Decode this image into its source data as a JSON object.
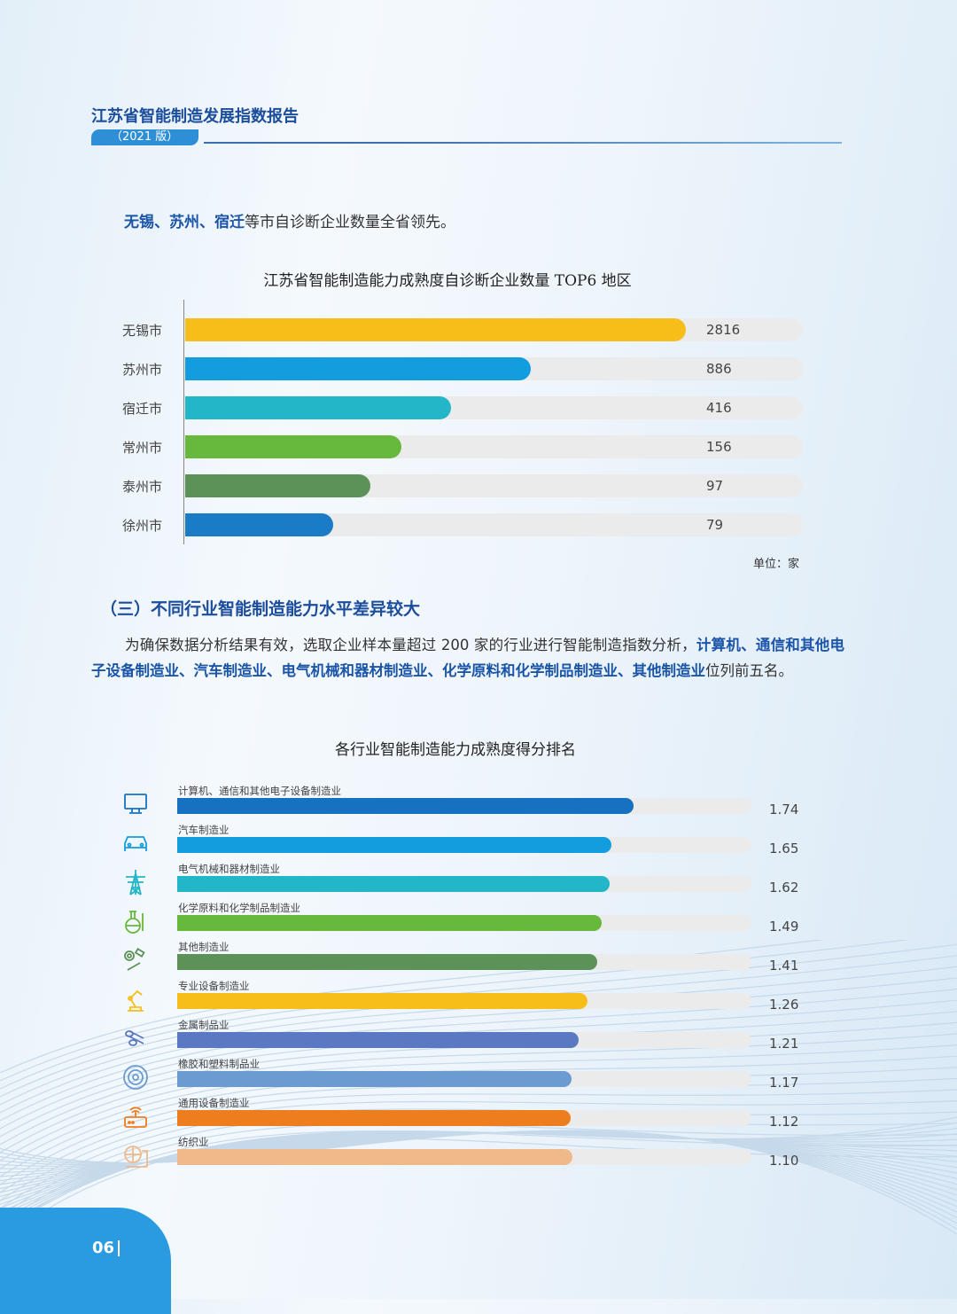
{
  "header": {
    "title": "江苏省智能制造发展指数报告",
    "edition": "（2021 版）"
  },
  "intro": {
    "highlight": "无锡、苏州、宿迁",
    "rest": "等市自诊断企业数量全省领先。"
  },
  "chart_data": [
    {
      "type": "bar",
      "orientation": "horizontal",
      "title": "江苏省智能制造能力成熟度自诊断企业数量 TOP6 地区",
      "categories": [
        "无锡市",
        "苏州市",
        "宿迁市",
        "常州市",
        "泰州市",
        "徐州市"
      ],
      "values": [
        2816,
        886,
        416,
        156,
        97,
        79
      ],
      "bar_fill": [
        0.81,
        0.56,
        0.43,
        0.35,
        0.3,
        0.24
      ],
      "colors": [
        "#f7be1a",
        "#139ddf",
        "#23b6c8",
        "#66b93c",
        "#5c9258",
        "#1a7cc6"
      ],
      "unit": "单位：家"
    },
    {
      "type": "bar",
      "orientation": "horizontal",
      "title": "各行业智能制造能力成熟度得分排名",
      "categories": [
        "计算机、通信和其他电子设备制造业",
        "汽车制造业",
        "电气机械和器材制造业",
        "化学原料和化学制品制造业",
        "其他制造业",
        "专业设备制造业",
        "金属制品业",
        "橡胶和塑料制品业",
        "通用设备制造业",
        "纺织业"
      ],
      "values": [
        "1.74",
        "1.65",
        "1.62",
        "1.49",
        "1.41",
        "1.26",
        "1.21",
        "1.17",
        "1.12",
        "1.10"
      ],
      "bar_fill": [
        0.795,
        0.756,
        0.753,
        0.739,
        0.731,
        0.715,
        0.699,
        0.687,
        0.685,
        0.688
      ],
      "colors": [
        "#1672c0",
        "#139ddf",
        "#23b6c8",
        "#66b93c",
        "#5c9258",
        "#f7be1a",
        "#5b78c2",
        "#6b9bd0",
        "#ee7d1e",
        "#f0b98a"
      ],
      "icons": [
        "monitor-icon",
        "car-icon",
        "power-tower-icon",
        "flask-icon",
        "parts-icon",
        "robot-arm-icon",
        "pipes-icon",
        "tire-icon",
        "router-icon",
        "textile-machine-icon"
      ]
    }
  ],
  "section": {
    "title": "（三）不同行业智能制造能力水平差异较大",
    "para_plain": "为确保数据分析结果有效，选取企业样本量超过 200 家的行业进行智能制造指数分析，",
    "para_highlight": "计算机、通信和其他电子设备制造业、汽车制造业、电气机械和器材制造业、化学原料和化学制品制造业、其他制造业",
    "para_end": "位列前五名。"
  },
  "footer": {
    "page": "06"
  }
}
